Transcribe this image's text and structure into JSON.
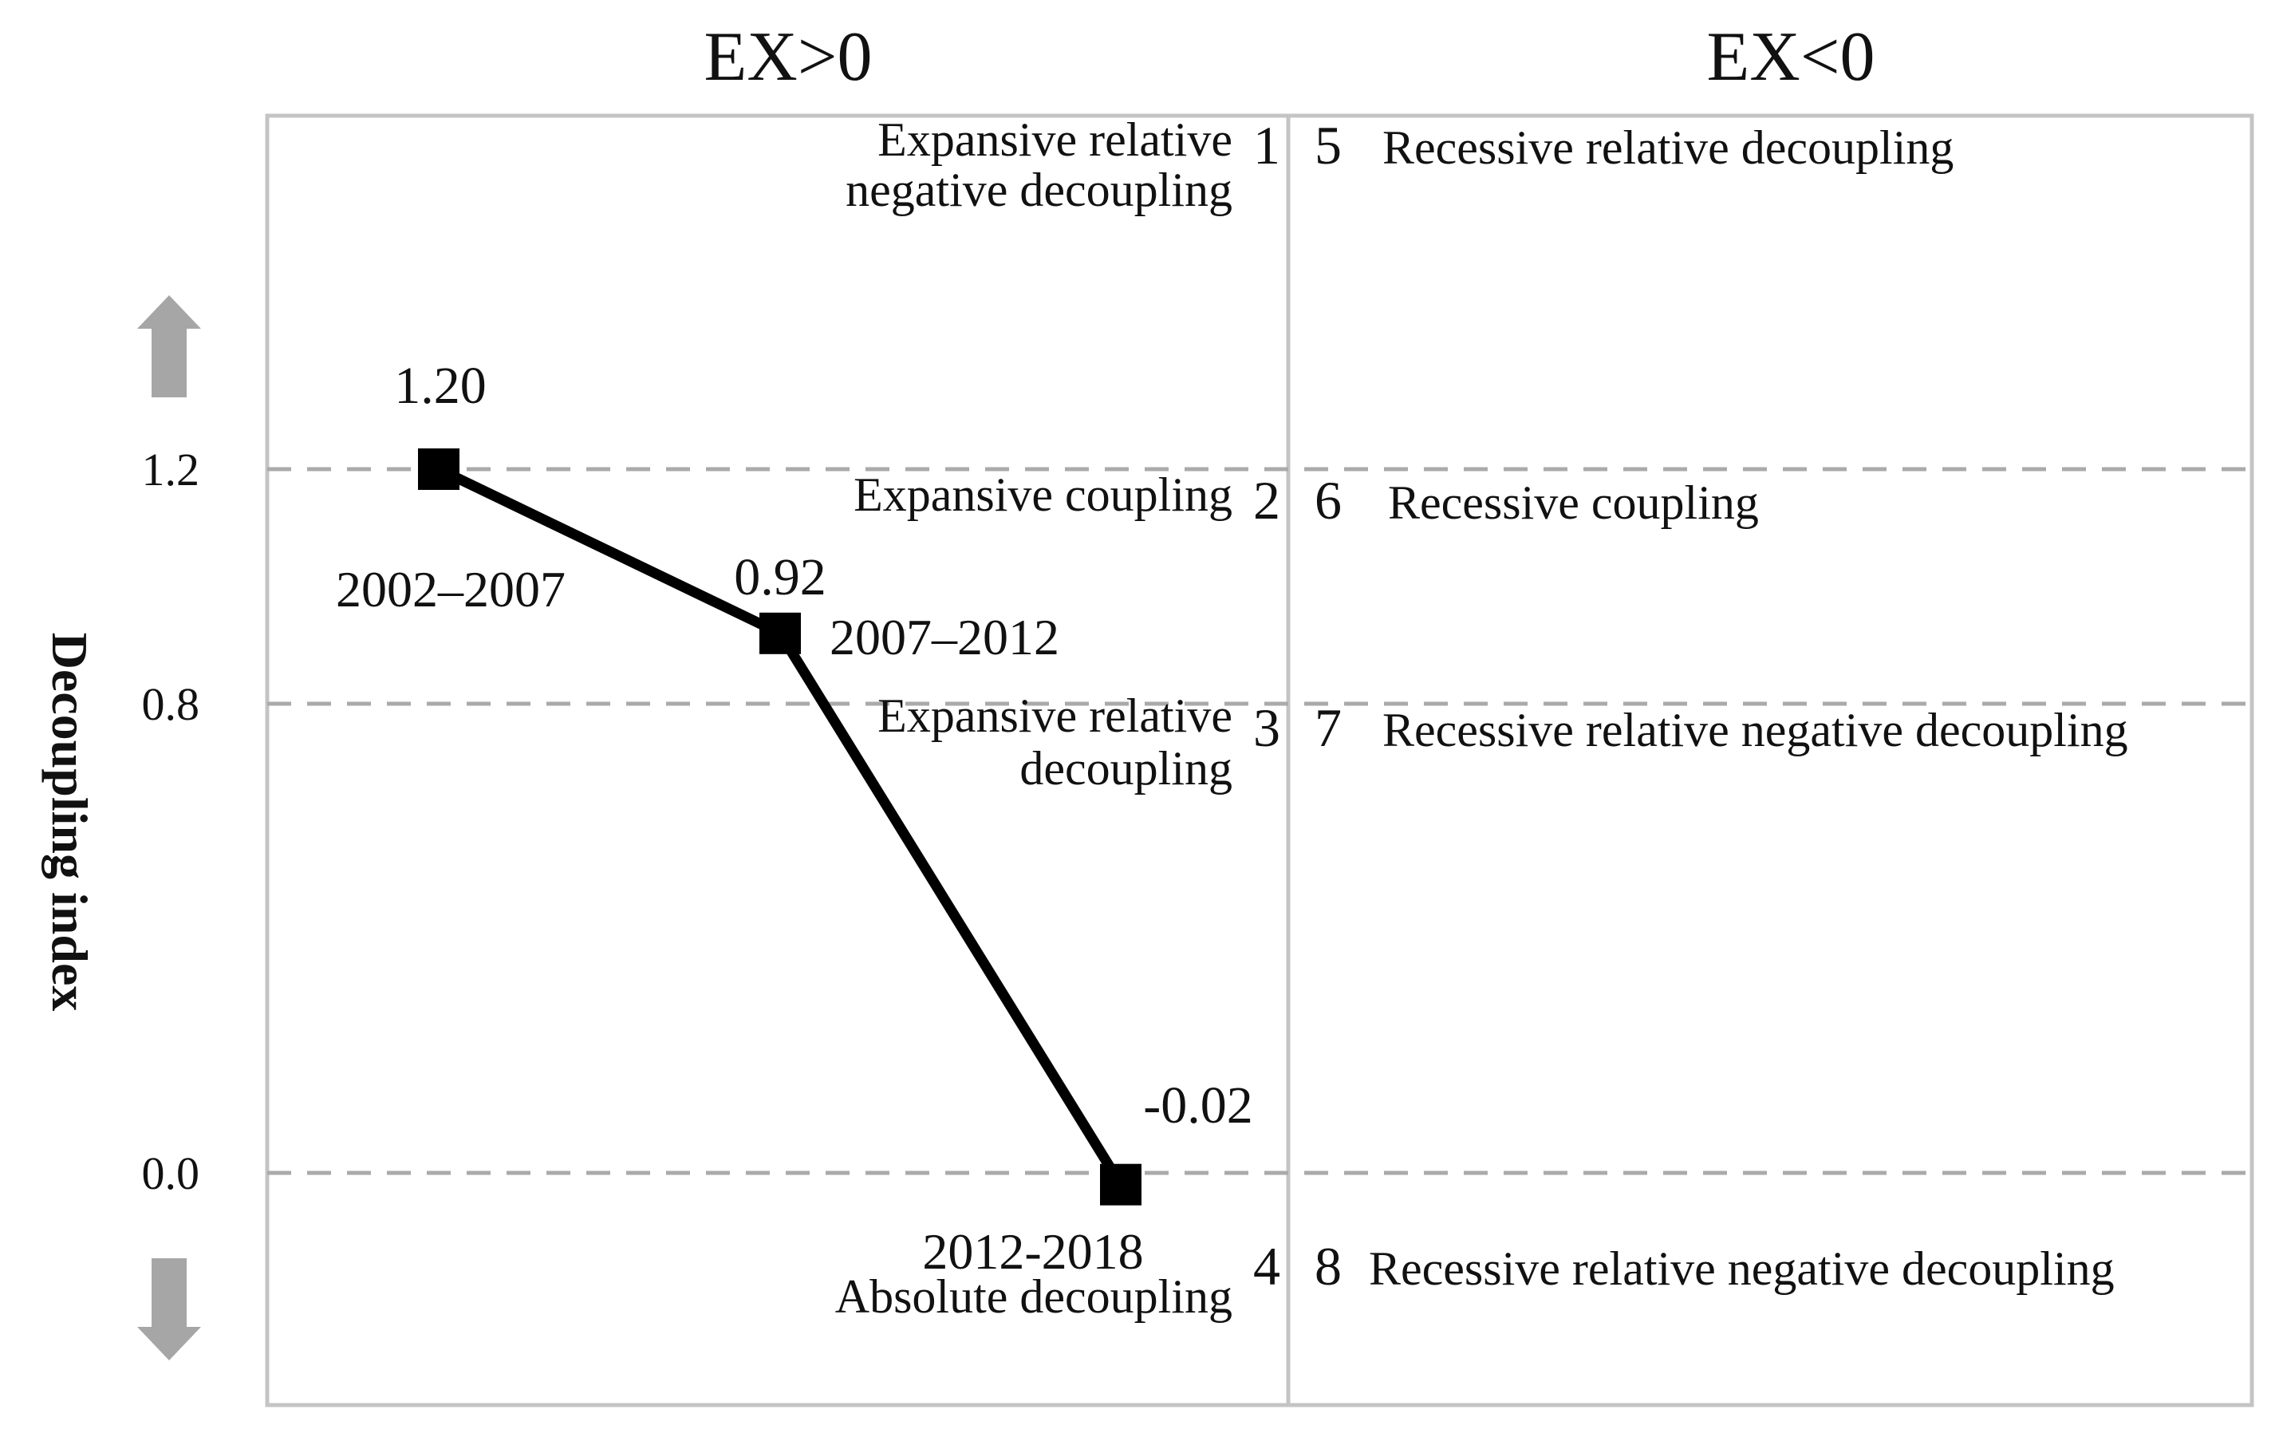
{
  "chart_data": {
    "type": "line",
    "ylabel": "Decoupling index",
    "columns": [
      "EX>0",
      "EX<0"
    ],
    "yticks": [
      {
        "value": 1.2,
        "label": "1.2"
      },
      {
        "value": 0.8,
        "label": "0.8"
      },
      {
        "value": 0.0,
        "label": "0.0"
      }
    ],
    "reference_lines": [
      1.2,
      0.8,
      0.0
    ],
    "grid": "dashed reference lines",
    "series": [
      {
        "points": [
          {
            "period": "2002–2007",
            "value": 1.2,
            "value_label": "1.20"
          },
          {
            "period": "2007–2012",
            "value": 0.92,
            "value_label": "0.92"
          },
          {
            "period": "2012-2018",
            "value": -0.02,
            "value_label": "-0.02"
          }
        ]
      }
    ],
    "zones_left": [
      {
        "number": "1",
        "lines": [
          "Expansive relative",
          "negative decoupling"
        ]
      },
      {
        "number": "2",
        "lines": [
          "Expansive coupling"
        ]
      },
      {
        "number": "3",
        "lines": [
          "Expansive relative",
          "decoupling"
        ]
      },
      {
        "number": "4",
        "lines": [
          "Absolute decoupling"
        ]
      }
    ],
    "zones_right": [
      {
        "number": "5",
        "label": "Recessive relative decoupling"
      },
      {
        "number": "6",
        "label": "Recessive coupling"
      },
      {
        "number": "7",
        "label": "Recessive relative negative decoupling"
      },
      {
        "number": "8",
        "label": "Recessive relative negative decoupling"
      }
    ],
    "arrows": [
      "up-arrow",
      "down-arrow"
    ],
    "colors": {
      "line": "#000000",
      "marker": "#000000",
      "frame": "#c4c4c4",
      "dash": "#aaaaaa",
      "arrow": "#a6a6a6"
    }
  }
}
